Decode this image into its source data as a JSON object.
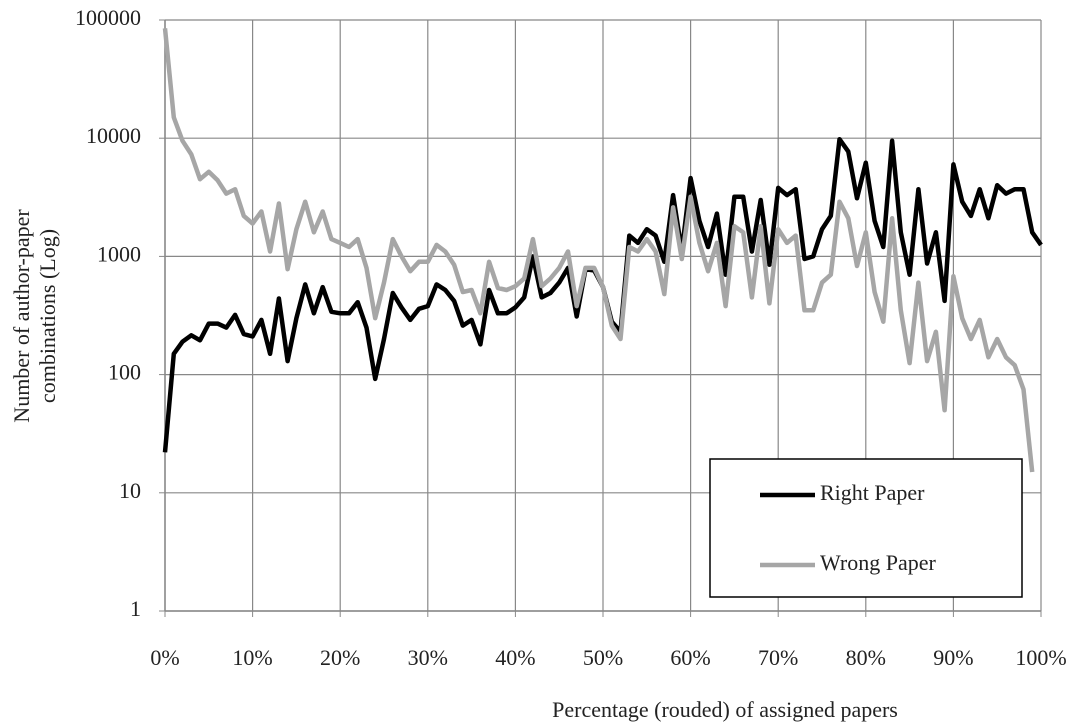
{
  "chart_data": {
    "type": "line",
    "xlabel": "Percentage (rouded) of assigned papers",
    "ylabel": [
      "Number of  author-paper",
      "combinations (Log)"
    ],
    "x": [
      0,
      1,
      2,
      3,
      4,
      5,
      6,
      7,
      8,
      9,
      10,
      11,
      12,
      13,
      14,
      15,
      16,
      17,
      18,
      19,
      20,
      21,
      22,
      23,
      24,
      25,
      26,
      27,
      28,
      29,
      30,
      31,
      32,
      33,
      34,
      35,
      36,
      37,
      38,
      39,
      40,
      41,
      42,
      43,
      44,
      45,
      46,
      47,
      48,
      49,
      50,
      51,
      52,
      53,
      54,
      55,
      56,
      57,
      58,
      59,
      60,
      61,
      62,
      63,
      64,
      65,
      66,
      67,
      68,
      69,
      70,
      71,
      72,
      73,
      74,
      75,
      76,
      77,
      78,
      79,
      80,
      81,
      82,
      83,
      84,
      85,
      86,
      87,
      88,
      89,
      90,
      91,
      92,
      93,
      94,
      95,
      96,
      97,
      98,
      99,
      100
    ],
    "series": [
      {
        "name": "Right Paper",
        "color": "#000000",
        "values": [
          22,
          150,
          190,
          215,
          195,
          270,
          270,
          250,
          320,
          220,
          210,
          290,
          150,
          440,
          130,
          300,
          580,
          330,
          550,
          340,
          330,
          330,
          410,
          250,
          92,
          200,
          490,
          370,
          290,
          360,
          380,
          580,
          520,
          420,
          260,
          290,
          180,
          520,
          330,
          330,
          370,
          450,
          1000,
          450,
          490,
          600,
          800,
          310,
          780,
          760,
          550,
          280,
          230,
          1500,
          1300,
          1700,
          1500,
          900,
          3300,
          1100,
          4600,
          2000,
          1200,
          2300,
          700,
          3200,
          3200,
          1100,
          3000,
          850,
          3800,
          3300,
          3700,
          950,
          1000,
          1700,
          2200,
          9800,
          7700,
          3100,
          6200,
          2000,
          1200,
          9500,
          1600,
          700,
          3700,
          870,
          1600,
          420,
          6000,
          2900,
          2200,
          3700,
          2100,
          4000,
          3400,
          3700,
          3700,
          1600,
          1250
        ]
      },
      {
        "name": "Wrong Paper",
        "color": "#a6a6a6",
        "values": [
          85000,
          15000,
          9500,
          7300,
          4500,
          5200,
          4400,
          3400,
          3700,
          2200,
          1900,
          2400,
          1100,
          2800,
          780,
          1700,
          2900,
          1600,
          2400,
          1400,
          1300,
          1200,
          1400,
          800,
          300,
          600,
          1400,
          1000,
          750,
          900,
          900,
          1250,
          1100,
          850,
          500,
          520,
          330,
          900,
          540,
          520,
          560,
          650,
          1400,
          560,
          650,
          800,
          1100,
          380,
          800,
          800,
          550,
          260,
          200,
          1200,
          1100,
          1400,
          1100,
          480,
          2600,
          950,
          3200,
          1300,
          750,
          1300,
          380,
          1800,
          1600,
          450,
          1800,
          400,
          1700,
          1300,
          1500,
          350,
          350,
          600,
          700,
          2900,
          2100,
          830,
          1600,
          500,
          280,
          2100,
          350,
          125,
          600,
          130,
          230,
          50,
          680,
          300,
          200,
          290,
          140,
          200,
          140,
          120,
          75,
          15,
          null
        ]
      }
    ],
    "xlim": [
      0,
      100
    ],
    "xticks": [
      {
        "value": 0,
        "label": "0%"
      },
      {
        "value": 10,
        "label": "10%"
      },
      {
        "value": 20,
        "label": "20%"
      },
      {
        "value": 30,
        "label": "30%"
      },
      {
        "value": 40,
        "label": "40%"
      },
      {
        "value": 50,
        "label": "50%"
      },
      {
        "value": 60,
        "label": "60%"
      },
      {
        "value": 70,
        "label": "70%"
      },
      {
        "value": 80,
        "label": "80%"
      },
      {
        "value": 90,
        "label": "90%"
      },
      {
        "value": 100,
        "label": "100%"
      }
    ],
    "ylim": [
      1,
      100000
    ],
    "yticks": [
      1,
      10,
      100,
      1000,
      10000,
      100000
    ],
    "log_scale": "y",
    "grid": true,
    "legend": "lower right"
  }
}
